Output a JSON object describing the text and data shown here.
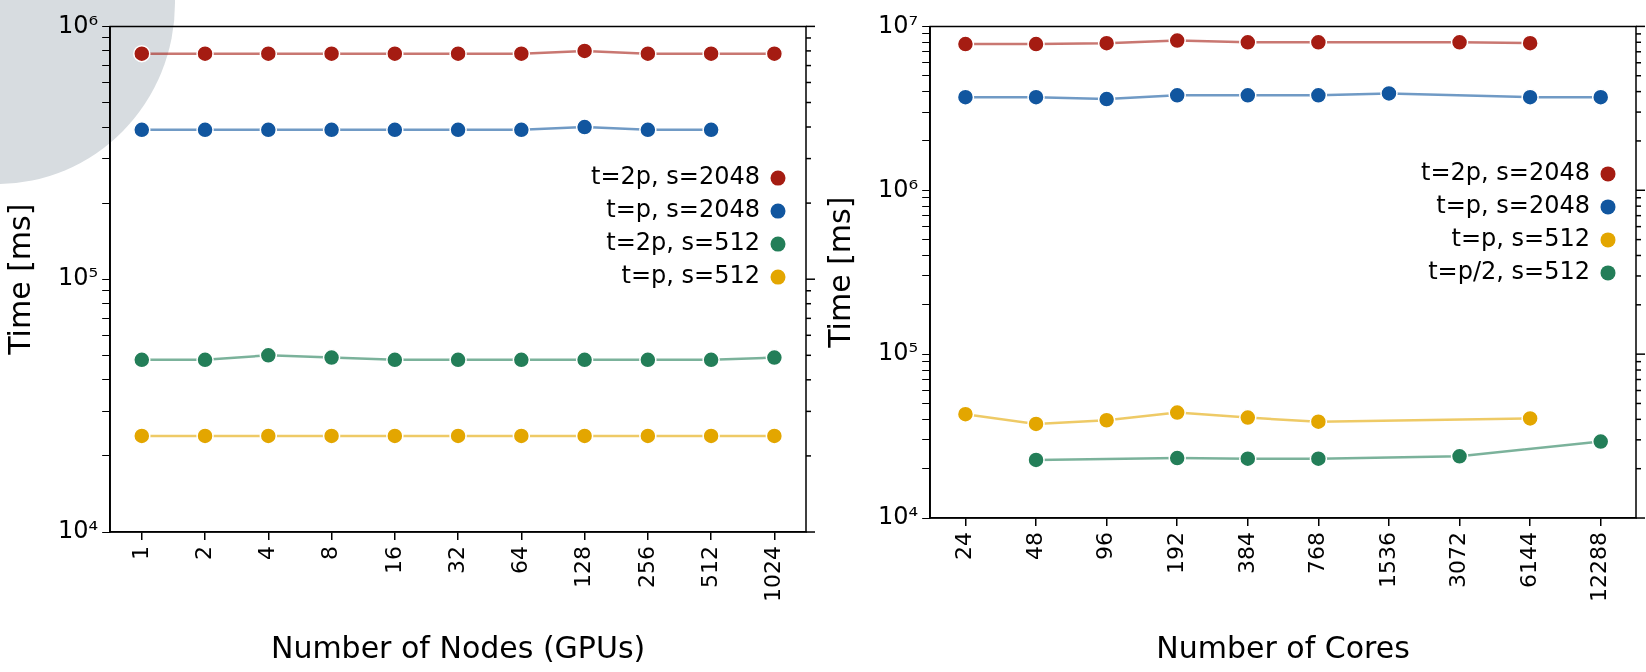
{
  "chart_data": [
    {
      "type": "line",
      "xlabel": "Number of Nodes (GPUs)",
      "ylabel": "Time [ms]",
      "categories": [
        "1",
        "2",
        "4",
        "8",
        "16",
        "32",
        "64",
        "128",
        "256",
        "512",
        "1024"
      ],
      "series": [
        {
          "name": "t=2p, s=2048",
          "color": "#a51c12",
          "values": [
            780000,
            780000,
            780000,
            780000,
            780000,
            780000,
            780000,
            800000,
            780000,
            780000,
            780000
          ]
        },
        {
          "name": "t=p, s=2048",
          "color": "#11569f",
          "values": [
            390000,
            390000,
            390000,
            390000,
            390000,
            390000,
            390000,
            400000,
            390000,
            390000,
            null
          ]
        },
        {
          "name": "t=2p, s=512",
          "color": "#237e58",
          "values": [
            48000,
            48000,
            50000,
            49000,
            48000,
            48000,
            48000,
            48000,
            48000,
            48000,
            49000
          ]
        },
        {
          "name": "t=p, s=512",
          "color": "#e3a600",
          "values": [
            24000,
            24000,
            24000,
            24000,
            24000,
            24000,
            24000,
            24000,
            24000,
            24000,
            24000
          ]
        }
      ],
      "log": "y",
      "ylim": [
        10000,
        1000000
      ],
      "yticks": [
        {
          "value": 10000,
          "label": "10⁴"
        },
        {
          "value": 20000,
          "label": null
        },
        {
          "value": 30000,
          "label": null
        },
        {
          "value": 40000,
          "label": null
        },
        {
          "value": 50000,
          "label": null
        },
        {
          "value": 60000,
          "label": null
        },
        {
          "value": 70000,
          "label": null
        },
        {
          "value": 80000,
          "label": null
        },
        {
          "value": 90000,
          "label": null
        },
        {
          "value": 100000,
          "label": "10⁵"
        },
        {
          "value": 200000,
          "label": null
        },
        {
          "value": 300000,
          "label": null
        },
        {
          "value": 400000,
          "label": null
        },
        {
          "value": 500000,
          "label": null
        },
        {
          "value": 600000,
          "label": null
        },
        {
          "value": 700000,
          "label": null
        },
        {
          "value": 800000,
          "label": null
        },
        {
          "value": 900000,
          "label": null
        },
        {
          "value": 1000000,
          "label": "10⁶"
        }
      ],
      "grid": false,
      "legend": "right",
      "marker": "circle",
      "line_style": "solid"
    },
    {
      "type": "line",
      "xlabel": "Number of Cores",
      "ylabel": "Time [ms]",
      "categories": [
        "24",
        "48",
        "96",
        "192",
        "384",
        "768",
        "1536",
        "3072",
        "6144",
        "12288"
      ],
      "series": [
        {
          "name": "t=2p, s=2048",
          "color": "#a51c12",
          "values": [
            7800000,
            7800000,
            7900000,
            8200000,
            8000000,
            8000000,
            null,
            8000000,
            7900000,
            null
          ]
        },
        {
          "name": "t=p, s=2048",
          "color": "#11569f",
          "values": [
            3700000,
            3700000,
            3600000,
            3800000,
            3800000,
            3800000,
            3900000,
            null,
            3700000,
            3700000
          ]
        },
        {
          "name": "t=p, s=512",
          "color": "#e3a600",
          "values": [
            43000,
            37500,
            39500,
            44000,
            41000,
            38700,
            null,
            null,
            40500,
            null
          ]
        },
        {
          "name": "t=p/2, s=512",
          "color": "#237e58",
          "values": [
            null,
            22600,
            null,
            23200,
            23000,
            23000,
            null,
            23800,
            null,
            29300
          ]
        }
      ],
      "log": "y",
      "ylim": [
        10000,
        10000000
      ],
      "yticks": [
        {
          "value": 10000,
          "label": "10⁴"
        },
        {
          "value": 20000,
          "label": null
        },
        {
          "value": 30000,
          "label": null
        },
        {
          "value": 40000,
          "label": null
        },
        {
          "value": 50000,
          "label": null
        },
        {
          "value": 60000,
          "label": null
        },
        {
          "value": 70000,
          "label": null
        },
        {
          "value": 80000,
          "label": null
        },
        {
          "value": 90000,
          "label": null
        },
        {
          "value": 100000,
          "label": "10⁵"
        },
        {
          "value": 200000,
          "label": null
        },
        {
          "value": 300000,
          "label": null
        },
        {
          "value": 400000,
          "label": null
        },
        {
          "value": 500000,
          "label": null
        },
        {
          "value": 600000,
          "label": null
        },
        {
          "value": 700000,
          "label": null
        },
        {
          "value": 800000,
          "label": null
        },
        {
          "value": 900000,
          "label": null
        },
        {
          "value": 1000000,
          "label": "10⁶"
        },
        {
          "value": 2000000,
          "label": null
        },
        {
          "value": 3000000,
          "label": null
        },
        {
          "value": 4000000,
          "label": null
        },
        {
          "value": 5000000,
          "label": null
        },
        {
          "value": 6000000,
          "label": null
        },
        {
          "value": 7000000,
          "label": null
        },
        {
          "value": 8000000,
          "label": null
        },
        {
          "value": 9000000,
          "label": null
        },
        {
          "value": 10000000,
          "label": "10⁷"
        }
      ],
      "grid": false,
      "legend": "right",
      "marker": "circle",
      "line_style": "solid"
    }
  ]
}
